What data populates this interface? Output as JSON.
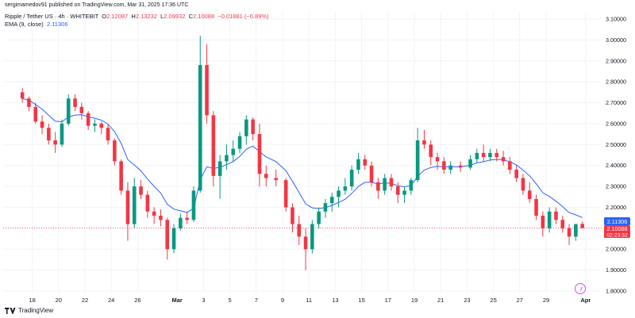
{
  "header": {
    "published": "sergimamedov91 published on TradingView.com, Mar 31, 2025 17:36 UTC"
  },
  "legend": {
    "symbol": "Ripple / Tether US · 4h · WHITEBIT",
    "o_label": "O",
    "o_value": "2.12087",
    "h_label": "H",
    "h_value": "2.13232",
    "l_label": "L",
    "l_value": "2.09932",
    "c_label": "C",
    "c_value": "2.10088",
    "change": "−0.01881 (−0.89%)",
    "ema_label": "EMA (9, close)",
    "ema_value": "2.11306"
  },
  "price_tags": {
    "ema": "2.11306",
    "close": "2.10088",
    "countdown": "02:23:32"
  },
  "footer": {
    "brand": "TradingView"
  },
  "colors": {
    "up": "#089981",
    "down": "#f23645",
    "ema": "#2962ff",
    "grid": "#f0f3fa",
    "axis_text": "#131722",
    "alert_icon": "#e040fb"
  },
  "icons": {
    "footer_logo": "tradingview-logo-icon",
    "alert": "alert-clock-icon"
  },
  "chart_data": {
    "type": "candlestick",
    "symbol": "Ripple / Tether US",
    "interval": "4h",
    "exchange": "WHITEBIT",
    "ylim": [
      1.8,
      3.1
    ],
    "y_ticks": [
      "3.10000",
      "3.00000",
      "2.90000",
      "2.80000",
      "2.70000",
      "2.60000",
      "2.50000",
      "2.40000",
      "2.30000",
      "2.20000",
      "2.10000",
      "2.00000",
      "1.90000",
      "1.80000"
    ],
    "x_ticks": [
      "18",
      "20",
      "22",
      "24",
      "26",
      "Mar",
      "3",
      "5",
      "7",
      "9",
      "11",
      "13",
      "15",
      "17",
      "19",
      "21",
      "23",
      "25",
      "27",
      "29",
      "Apr"
    ],
    "x_range": [
      "2025-02-17",
      "2025-04-01"
    ],
    "grid": true,
    "indicators": [
      {
        "name": "EMA (9, close)",
        "last": 2.11306
      }
    ],
    "last_close": 2.10088,
    "ohlc": [
      {
        "t": "2025-02-17",
        "o": 2.75,
        "h": 2.77,
        "l": 2.7,
        "c": 2.72
      },
      {
        "t": "2025-02-17",
        "o": 2.72,
        "h": 2.73,
        "l": 2.66,
        "c": 2.68
      },
      {
        "t": "2025-02-18",
        "o": 2.68,
        "h": 2.7,
        "l": 2.6,
        "c": 2.61
      },
      {
        "t": "2025-02-18",
        "o": 2.61,
        "h": 2.64,
        "l": 2.55,
        "c": 2.58
      },
      {
        "t": "2025-02-19",
        "o": 2.58,
        "h": 2.6,
        "l": 2.5,
        "c": 2.52
      },
      {
        "t": "2025-02-19",
        "o": 2.52,
        "h": 2.56,
        "l": 2.46,
        "c": 2.5
      },
      {
        "t": "2025-02-20",
        "o": 2.5,
        "h": 2.62,
        "l": 2.49,
        "c": 2.6
      },
      {
        "t": "2025-02-20",
        "o": 2.6,
        "h": 2.74,
        "l": 2.59,
        "c": 2.72
      },
      {
        "t": "2025-02-21",
        "o": 2.72,
        "h": 2.74,
        "l": 2.66,
        "c": 2.68
      },
      {
        "t": "2025-02-21",
        "o": 2.68,
        "h": 2.7,
        "l": 2.62,
        "c": 2.65
      },
      {
        "t": "2025-02-22",
        "o": 2.65,
        "h": 2.66,
        "l": 2.57,
        "c": 2.59
      },
      {
        "t": "2025-02-22",
        "o": 2.59,
        "h": 2.62,
        "l": 2.56,
        "c": 2.6
      },
      {
        "t": "2025-02-23",
        "o": 2.6,
        "h": 2.61,
        "l": 2.55,
        "c": 2.58
      },
      {
        "t": "2025-02-23",
        "o": 2.58,
        "h": 2.6,
        "l": 2.5,
        "c": 2.52
      },
      {
        "t": "2025-02-24",
        "o": 2.52,
        "h": 2.53,
        "l": 2.4,
        "c": 2.42
      },
      {
        "t": "2025-02-24",
        "o": 2.42,
        "h": 2.43,
        "l": 2.26,
        "c": 2.28
      },
      {
        "t": "2025-02-25",
        "o": 2.28,
        "h": 2.32,
        "l": 2.04,
        "c": 2.12
      },
      {
        "t": "2025-02-25",
        "o": 2.12,
        "h": 2.34,
        "l": 2.1,
        "c": 2.3
      },
      {
        "t": "2025-02-26",
        "o": 2.3,
        "h": 2.33,
        "l": 2.24,
        "c": 2.26
      },
      {
        "t": "2025-02-26",
        "o": 2.26,
        "h": 2.28,
        "l": 2.15,
        "c": 2.18
      },
      {
        "t": "2025-02-27",
        "o": 2.18,
        "h": 2.2,
        "l": 2.12,
        "c": 2.16
      },
      {
        "t": "2025-02-27",
        "o": 2.16,
        "h": 2.19,
        "l": 2.11,
        "c": 2.14
      },
      {
        "t": "2025-02-28",
        "o": 2.14,
        "h": 2.15,
        "l": 1.95,
        "c": 2.0
      },
      {
        "t": "2025-02-28",
        "o": 2.0,
        "h": 2.12,
        "l": 1.98,
        "c": 2.1
      },
      {
        "t": "2025-03-01",
        "o": 2.1,
        "h": 2.17,
        "l": 2.09,
        "c": 2.15
      },
      {
        "t": "2025-03-01",
        "o": 2.15,
        "h": 2.18,
        "l": 2.12,
        "c": 2.14
      },
      {
        "t": "2025-03-02",
        "o": 2.14,
        "h": 2.3,
        "l": 2.13,
        "c": 2.28
      },
      {
        "t": "2025-03-02",
        "o": 2.28,
        "h": 3.02,
        "l": 2.27,
        "c": 2.88
      },
      {
        "t": "2025-03-03",
        "o": 2.88,
        "h": 2.98,
        "l": 2.6,
        "c": 2.64
      },
      {
        "t": "2025-03-03",
        "o": 2.64,
        "h": 2.66,
        "l": 2.3,
        "c": 2.35
      },
      {
        "t": "2025-03-04",
        "o": 2.35,
        "h": 2.45,
        "l": 2.24,
        "c": 2.42
      },
      {
        "t": "2025-03-04",
        "o": 2.42,
        "h": 2.5,
        "l": 2.38,
        "c": 2.45
      },
      {
        "t": "2025-03-05",
        "o": 2.45,
        "h": 2.52,
        "l": 2.42,
        "c": 2.48
      },
      {
        "t": "2025-03-05",
        "o": 2.48,
        "h": 2.56,
        "l": 2.46,
        "c": 2.54
      },
      {
        "t": "2025-03-06",
        "o": 2.54,
        "h": 2.64,
        "l": 2.5,
        "c": 2.62
      },
      {
        "t": "2025-03-06",
        "o": 2.62,
        "h": 2.63,
        "l": 2.52,
        "c": 2.55
      },
      {
        "t": "2025-03-07",
        "o": 2.55,
        "h": 2.6,
        "l": 2.3,
        "c": 2.36
      },
      {
        "t": "2025-03-07",
        "o": 2.36,
        "h": 2.4,
        "l": 2.3,
        "c": 2.34
      },
      {
        "t": "2025-03-08",
        "o": 2.34,
        "h": 2.38,
        "l": 2.3,
        "c": 2.33
      },
      {
        "t": "2025-03-09",
        "o": 2.33,
        "h": 2.34,
        "l": 2.18,
        "c": 2.2
      },
      {
        "t": "2025-03-09",
        "o": 2.2,
        "h": 2.22,
        "l": 2.08,
        "c": 2.12
      },
      {
        "t": "2025-03-10",
        "o": 2.12,
        "h": 2.16,
        "l": 2.02,
        "c": 2.06
      },
      {
        "t": "2025-03-10",
        "o": 2.06,
        "h": 2.1,
        "l": 1.9,
        "c": 2.0
      },
      {
        "t": "2025-03-11",
        "o": 2.0,
        "h": 2.14,
        "l": 1.98,
        "c": 2.12
      },
      {
        "t": "2025-03-11",
        "o": 2.12,
        "h": 2.2,
        "l": 2.1,
        "c": 2.18
      },
      {
        "t": "2025-03-12",
        "o": 2.18,
        "h": 2.24,
        "l": 2.15,
        "c": 2.22
      },
      {
        "t": "2025-03-12",
        "o": 2.22,
        "h": 2.27,
        "l": 2.18,
        "c": 2.25
      },
      {
        "t": "2025-03-13",
        "o": 2.25,
        "h": 2.3,
        "l": 2.2,
        "c": 2.28
      },
      {
        "t": "2025-03-13",
        "o": 2.28,
        "h": 2.34,
        "l": 2.26,
        "c": 2.3
      },
      {
        "t": "2025-03-14",
        "o": 2.3,
        "h": 2.4,
        "l": 2.28,
        "c": 2.38
      },
      {
        "t": "2025-03-14",
        "o": 2.38,
        "h": 2.46,
        "l": 2.36,
        "c": 2.43
      },
      {
        "t": "2025-03-15",
        "o": 2.43,
        "h": 2.45,
        "l": 2.38,
        "c": 2.4
      },
      {
        "t": "2025-03-15",
        "o": 2.4,
        "h": 2.42,
        "l": 2.3,
        "c": 2.32
      },
      {
        "t": "2025-03-16",
        "o": 2.32,
        "h": 2.34,
        "l": 2.24,
        "c": 2.28
      },
      {
        "t": "2025-03-16",
        "o": 2.28,
        "h": 2.36,
        "l": 2.26,
        "c": 2.34
      },
      {
        "t": "2025-03-17",
        "o": 2.34,
        "h": 2.36,
        "l": 2.28,
        "c": 2.3
      },
      {
        "t": "2025-03-17",
        "o": 2.3,
        "h": 2.32,
        "l": 2.22,
        "c": 2.26
      },
      {
        "t": "2025-03-18",
        "o": 2.26,
        "h": 2.3,
        "l": 2.22,
        "c": 2.28
      },
      {
        "t": "2025-03-18",
        "o": 2.28,
        "h": 2.34,
        "l": 2.26,
        "c": 2.33
      },
      {
        "t": "2025-03-19",
        "o": 2.33,
        "h": 2.58,
        "l": 2.32,
        "c": 2.52
      },
      {
        "t": "2025-03-19",
        "o": 2.52,
        "h": 2.57,
        "l": 2.48,
        "c": 2.5
      },
      {
        "t": "2025-03-20",
        "o": 2.5,
        "h": 2.52,
        "l": 2.4,
        "c": 2.44
      },
      {
        "t": "2025-03-20",
        "o": 2.44,
        "h": 2.46,
        "l": 2.38,
        "c": 2.42
      },
      {
        "t": "2025-03-21",
        "o": 2.42,
        "h": 2.44,
        "l": 2.36,
        "c": 2.38
      },
      {
        "t": "2025-03-21",
        "o": 2.38,
        "h": 2.42,
        "l": 2.36,
        "c": 2.4
      },
      {
        "t": "2025-03-22",
        "o": 2.4,
        "h": 2.42,
        "l": 2.37,
        "c": 2.39
      },
      {
        "t": "2025-03-23",
        "o": 2.39,
        "h": 2.45,
        "l": 2.38,
        "c": 2.43
      },
      {
        "t": "2025-03-23",
        "o": 2.43,
        "h": 2.48,
        "l": 2.41,
        "c": 2.46
      },
      {
        "t": "2025-03-24",
        "o": 2.46,
        "h": 2.5,
        "l": 2.42,
        "c": 2.44
      },
      {
        "t": "2025-03-24",
        "o": 2.44,
        "h": 2.48,
        "l": 2.42,
        "c": 2.46
      },
      {
        "t": "2025-03-25",
        "o": 2.46,
        "h": 2.48,
        "l": 2.42,
        "c": 2.44
      },
      {
        "t": "2025-03-25",
        "o": 2.44,
        "h": 2.47,
        "l": 2.4,
        "c": 2.42
      },
      {
        "t": "2025-03-26",
        "o": 2.42,
        "h": 2.44,
        "l": 2.36,
        "c": 2.38
      },
      {
        "t": "2025-03-26",
        "o": 2.38,
        "h": 2.4,
        "l": 2.32,
        "c": 2.34
      },
      {
        "t": "2025-03-27",
        "o": 2.34,
        "h": 2.36,
        "l": 2.26,
        "c": 2.28
      },
      {
        "t": "2025-03-27",
        "o": 2.28,
        "h": 2.32,
        "l": 2.22,
        "c": 2.24
      },
      {
        "t": "2025-03-28",
        "o": 2.24,
        "h": 2.26,
        "l": 2.14,
        "c": 2.16
      },
      {
        "t": "2025-03-28",
        "o": 2.16,
        "h": 2.18,
        "l": 2.06,
        "c": 2.1
      },
      {
        "t": "2025-03-29",
        "o": 2.1,
        "h": 2.2,
        "l": 2.08,
        "c": 2.18
      },
      {
        "t": "2025-03-29",
        "o": 2.18,
        "h": 2.2,
        "l": 2.12,
        "c": 2.14
      },
      {
        "t": "2025-03-30",
        "o": 2.14,
        "h": 2.16,
        "l": 2.08,
        "c": 2.1
      },
      {
        "t": "2025-03-30",
        "o": 2.1,
        "h": 2.12,
        "l": 2.02,
        "c": 2.06
      },
      {
        "t": "2025-03-31",
        "o": 2.06,
        "h": 2.12,
        "l": 2.04,
        "c": 2.12
      },
      {
        "t": "2025-03-31",
        "o": 2.12087,
        "h": 2.13232,
        "l": 2.09932,
        "c": 2.10088
      }
    ]
  }
}
